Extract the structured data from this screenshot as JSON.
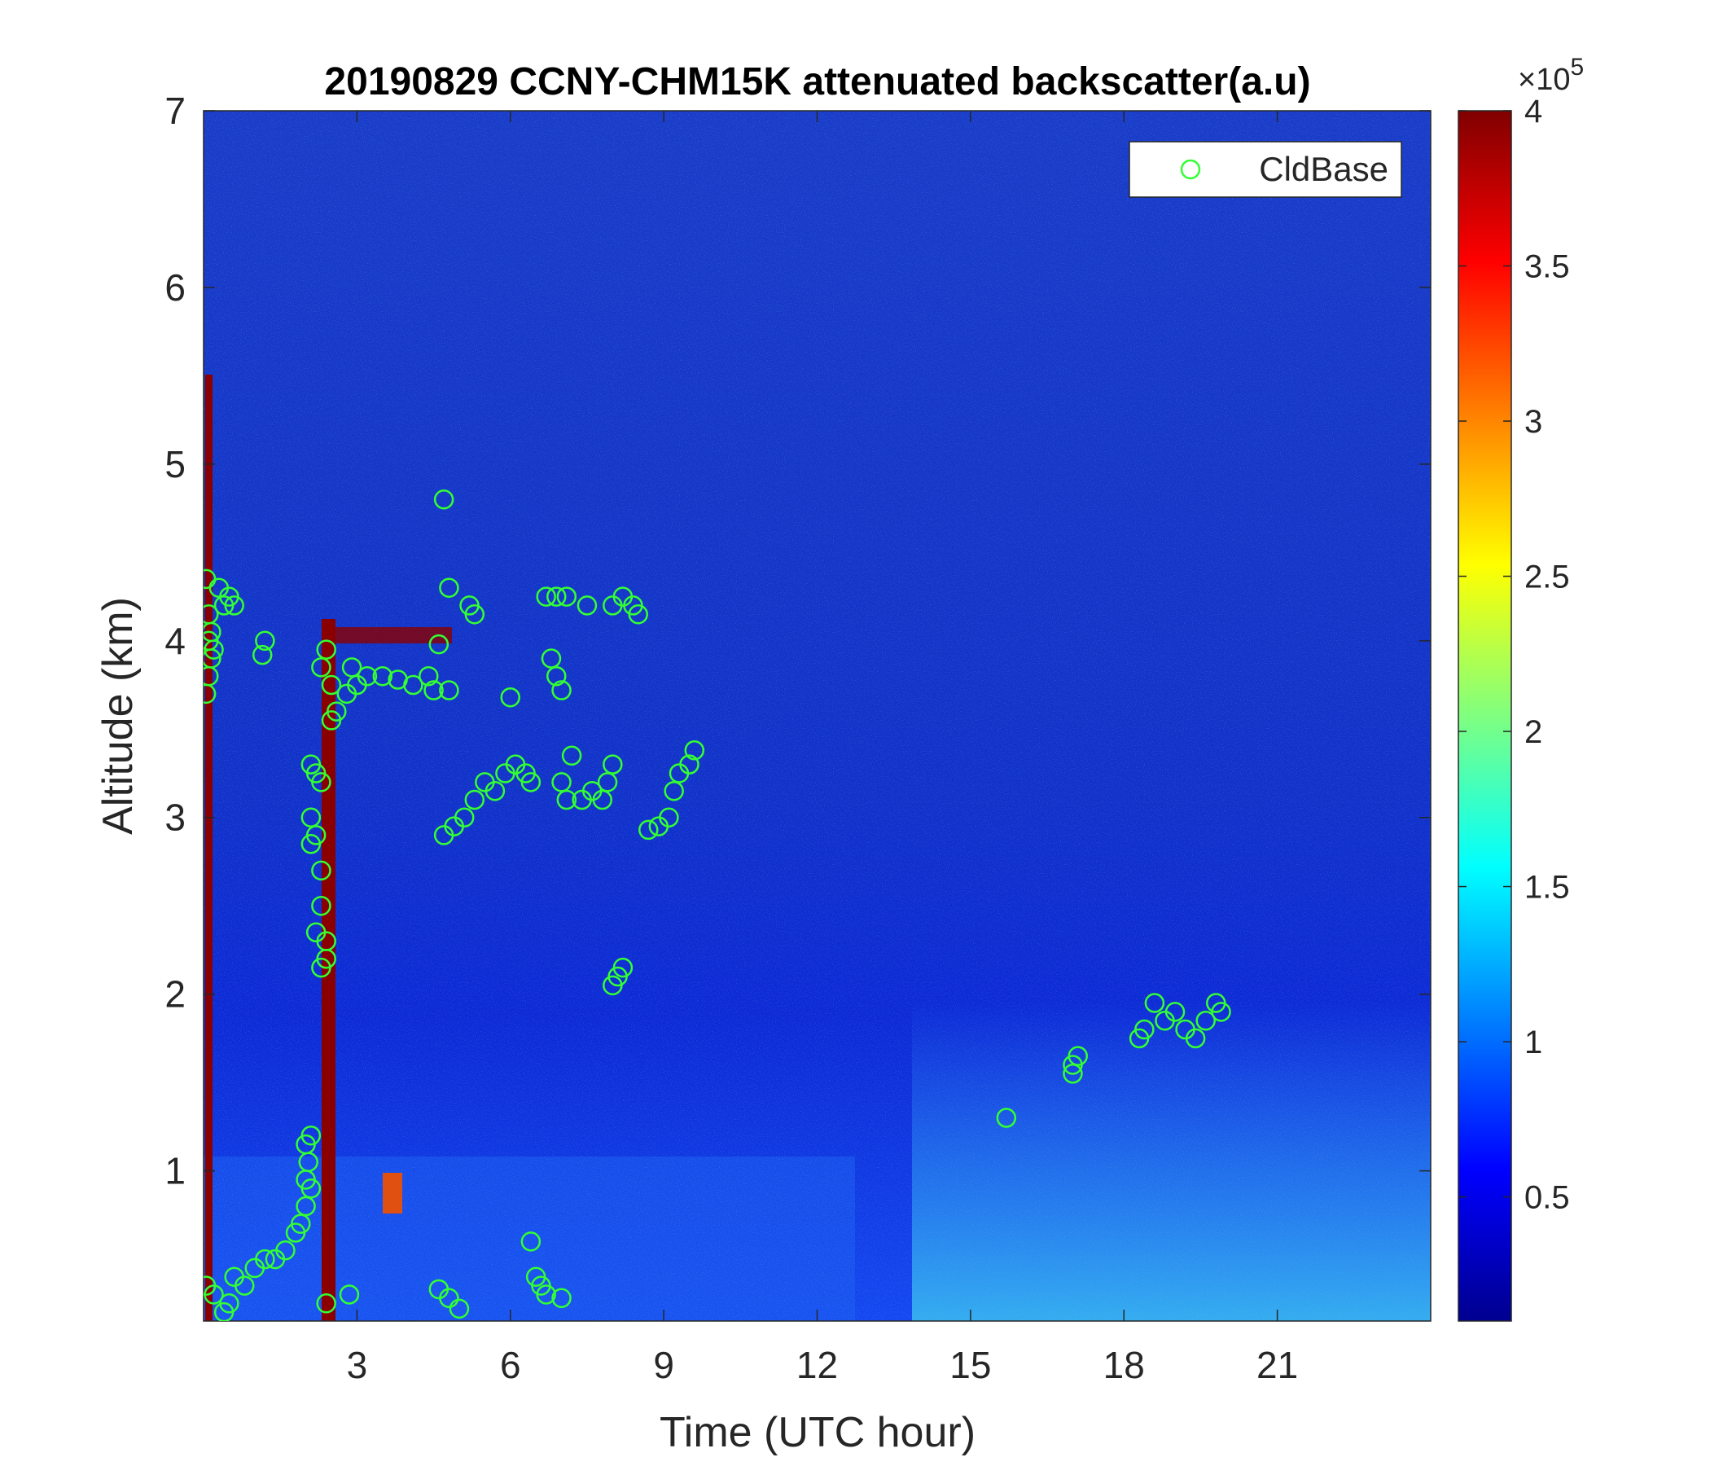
{
  "chart_data": {
    "type": "scatter",
    "title": "20190829 CCNY-CHM15K attenuated backscatter(a.u)",
    "x_label": "Time (UTC hour)",
    "y_label": "Altitude (km)",
    "xlim": [
      0,
      24
    ],
    "xticks": [
      3,
      6,
      9,
      12,
      15,
      18,
      21
    ],
    "ylim": [
      0.15,
      7
    ],
    "yticks": [
      1,
      2,
      3,
      4,
      5,
      6,
      7
    ],
    "legend_position": "upper right",
    "series": [
      {
        "name": "CldBase",
        "color": "#33ff33",
        "marker": "open circle",
        "x": [
          0.05,
          0.1,
          0.1,
          0.15,
          0.1,
          0.05,
          0.15,
          0.2,
          0.3,
          0.5,
          0.4,
          0.6,
          1.2,
          1.15,
          0.05,
          0.2,
          0.4,
          0.5,
          0.6,
          0.8,
          1.0,
          1.2,
          1.4,
          1.6,
          1.8,
          1.9,
          2.0,
          2.0,
          2.05,
          2.0,
          2.1,
          2.1,
          2.1,
          2.2,
          2.3,
          2.1,
          2.2,
          2.1,
          2.3,
          2.3,
          2.2,
          2.4,
          2.3,
          2.4,
          2.4,
          2.3,
          2.5,
          2.6,
          2.5,
          2.8,
          2.9,
          3.0,
          3.2,
          3.5,
          3.8,
          4.1,
          4.4,
          4.5,
          4.6,
          4.8,
          4.7,
          4.8,
          5.2,
          5.3,
          4.7,
          4.9,
          5.1,
          5.3,
          5.5,
          5.7,
          5.9,
          6.1,
          6.3,
          6.4,
          6.0,
          6.7,
          6.9,
          7.1,
          6.8,
          6.9,
          7.0,
          7.0,
          7.1,
          7.2,
          7.4,
          7.6,
          7.8,
          8.0,
          7.9,
          7.5,
          8.0,
          8.2,
          8.4,
          8.5,
          8.0,
          8.1,
          8.2,
          8.7,
          8.9,
          9.1,
          9.2,
          9.3,
          9.5,
          9.6,
          4.6,
          4.8,
          5.0,
          2.4,
          2.85,
          6.4,
          6.5,
          6.6,
          6.7,
          7.0,
          15.7,
          17.0,
          17.1,
          17.0,
          18.3,
          18.4,
          18.6,
          18.8,
          19.0,
          19.2,
          19.4,
          19.6,
          19.8,
          19.9
        ],
        "values": [
          4.35,
          4.15,
          4.0,
          3.9,
          3.8,
          3.7,
          4.05,
          3.95,
          4.3,
          4.25,
          4.2,
          4.2,
          4.0,
          3.92,
          0.35,
          0.3,
          0.2,
          0.25,
          0.4,
          0.35,
          0.45,
          0.5,
          0.5,
          0.55,
          0.65,
          0.7,
          0.8,
          0.95,
          1.05,
          1.15,
          1.2,
          0.9,
          3.3,
          3.25,
          3.2,
          3.0,
          2.9,
          2.85,
          2.7,
          2.5,
          2.35,
          2.3,
          2.15,
          2.2,
          3.95,
          3.85,
          3.75,
          3.6,
          3.55,
          3.7,
          3.85,
          3.75,
          3.8,
          3.8,
          3.78,
          3.75,
          3.8,
          3.72,
          3.98,
          3.72,
          4.8,
          4.3,
          4.2,
          4.15,
          2.9,
          2.95,
          3.0,
          3.1,
          3.2,
          3.15,
          3.25,
          3.3,
          3.25,
          3.2,
          3.68,
          4.25,
          4.25,
          4.25,
          3.9,
          3.8,
          3.72,
          3.2,
          3.1,
          3.35,
          3.1,
          3.15,
          3.1,
          3.3,
          3.2,
          4.2,
          4.2,
          4.25,
          4.2,
          4.15,
          2.05,
          2.1,
          2.15,
          2.93,
          2.95,
          3.0,
          3.15,
          3.25,
          3.3,
          3.38,
          0.33,
          0.28,
          0.22,
          0.25,
          0.3,
          0.6,
          0.4,
          0.35,
          0.3,
          0.28,
          1.3,
          1.6,
          1.65,
          1.55,
          1.75,
          1.8,
          1.95,
          1.85,
          1.9,
          1.8,
          1.75,
          1.85,
          1.95,
          1.9
        ]
      }
    ],
    "colorbar": {
      "colormap": "jet",
      "lim": [
        0.1,
        4
      ],
      "ticks": [
        0.5,
        1,
        1.5,
        2,
        2.5,
        3,
        3.5,
        4
      ],
      "multiplier_base": "×10",
      "multiplier_exponent": "5"
    }
  }
}
